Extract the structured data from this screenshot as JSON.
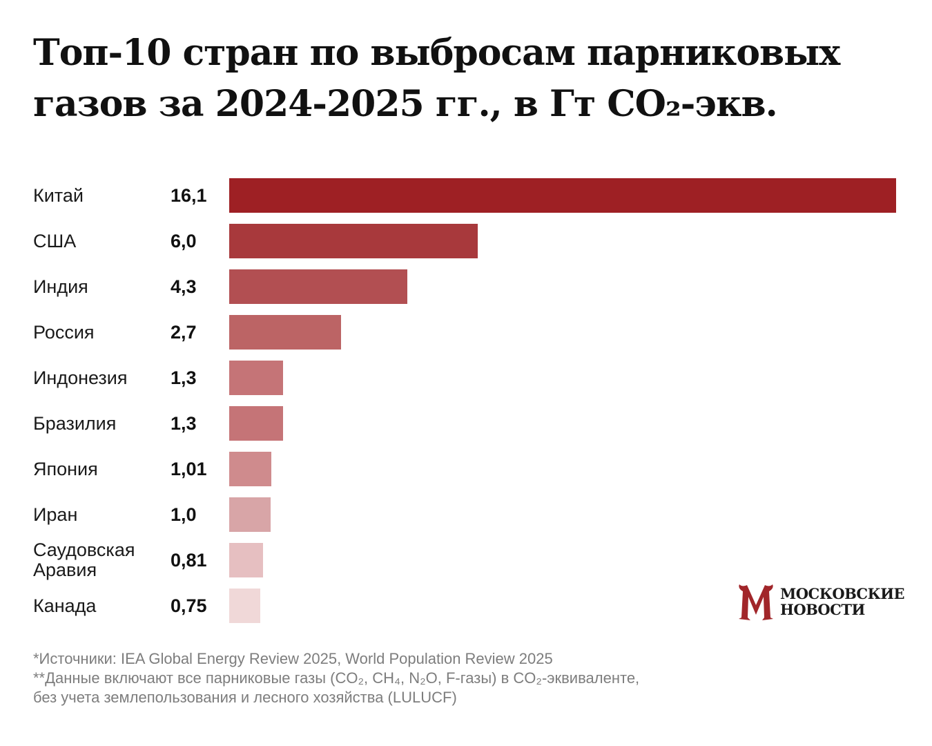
{
  "title_line1": "Топ-10 стран по выбросам парниковых",
  "title_line2": "газов за 2024-2025 гг., в Гт CO₂-экв.",
  "chart_data": {
    "type": "bar",
    "orientation": "horizontal",
    "title": "Топ-10 стран по выбросам парниковых газов за 2024-2025 гг., в Гт CO₂-экв.",
    "categories": [
      "Китай",
      "США",
      "Индия",
      "Россия",
      "Индонезия",
      "Бразилия",
      "Япония",
      "Иран",
      "Саудовская Аравия",
      "Канада"
    ],
    "values": [
      16.1,
      6.0,
      4.3,
      2.7,
      1.3,
      1.3,
      1.01,
      1.0,
      0.81,
      0.75
    ],
    "value_labels": [
      "16,1",
      "6,0",
      "4,3",
      "2,7",
      "1,3",
      "1,3",
      "1,01",
      "1,0",
      "0,81",
      "0,75"
    ],
    "colors": [
      "#9e2024",
      "#a8393c",
      "#b24f52",
      "#bc6465",
      "#c57477",
      "#c57477",
      "#cf8b8d",
      "#d8a5a7",
      "#e6bfc1",
      "#f0d8d8"
    ],
    "xlim": [
      0,
      16.1
    ],
    "grid": false,
    "legend": "none"
  },
  "notes": {
    "line1": "*Источники: IEA Global Energy Review 2025, World Population Review 2025",
    "line2": "**Данные включают все парниковые газы (CO₂, CH₄, N₂O, F-газы) в CO₂-эквиваленте,",
    "line3": "без учета землепользования и лесного хозяйства (LULUCF)"
  },
  "logo": {
    "line1": "МОСКОВСКИЕ",
    "line2": "НОВОСТИ",
    "color": "#a1262a"
  }
}
